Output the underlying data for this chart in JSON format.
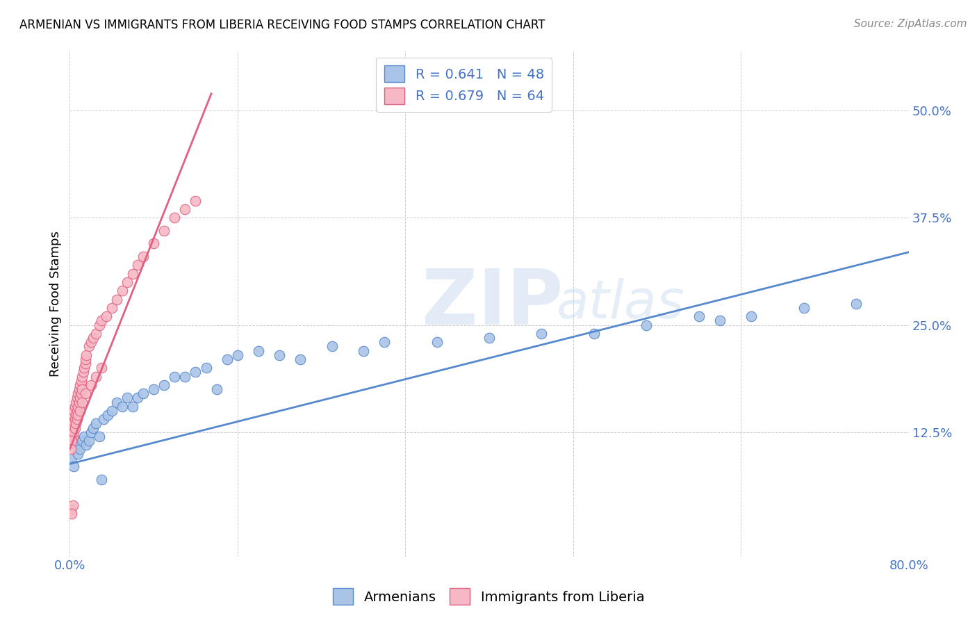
{
  "title": "ARMENIAN VS IMMIGRANTS FROM LIBERIA RECEIVING FOOD STAMPS CORRELATION CHART",
  "source": "Source: ZipAtlas.com",
  "ylabel": "Receiving Food Stamps",
  "background_color": "#ffffff",
  "legend": {
    "armenian_R": "0.641",
    "armenian_N": "48",
    "liberia_R": "0.679",
    "liberia_N": "64"
  },
  "armenian_color": "#aac4e8",
  "liberia_color": "#f5b8c4",
  "line_armenian": "#5588cc",
  "line_liberia": "#e06080",
  "scatter_armenian_x": [
    0.002,
    0.004,
    0.006,
    0.008,
    0.01,
    0.012,
    0.014,
    0.016,
    0.018,
    0.02,
    0.022,
    0.025,
    0.028,
    0.032,
    0.036,
    0.04,
    0.045,
    0.05,
    0.055,
    0.06,
    0.065,
    0.07,
    0.08,
    0.09,
    0.1,
    0.11,
    0.12,
    0.13,
    0.14,
    0.15,
    0.16,
    0.18,
    0.2,
    0.22,
    0.25,
    0.28,
    0.3,
    0.35,
    0.4,
    0.45,
    0.5,
    0.55,
    0.6,
    0.62,
    0.65,
    0.7,
    0.75,
    0.03
  ],
  "scatter_armenian_y": [
    0.095,
    0.085,
    0.11,
    0.1,
    0.105,
    0.115,
    0.12,
    0.11,
    0.115,
    0.125,
    0.13,
    0.135,
    0.12,
    0.14,
    0.145,
    0.15,
    0.16,
    0.155,
    0.165,
    0.155,
    0.165,
    0.17,
    0.175,
    0.18,
    0.19,
    0.19,
    0.195,
    0.2,
    0.175,
    0.21,
    0.215,
    0.22,
    0.215,
    0.21,
    0.225,
    0.22,
    0.23,
    0.23,
    0.235,
    0.24,
    0.24,
    0.25,
    0.26,
    0.255,
    0.26,
    0.27,
    0.275,
    0.07
  ],
  "scatter_liberia_x": [
    0.001,
    0.002,
    0.002,
    0.003,
    0.003,
    0.004,
    0.004,
    0.005,
    0.005,
    0.006,
    0.006,
    0.007,
    0.007,
    0.008,
    0.008,
    0.009,
    0.009,
    0.01,
    0.01,
    0.011,
    0.011,
    0.012,
    0.012,
    0.013,
    0.014,
    0.015,
    0.015,
    0.016,
    0.018,
    0.02,
    0.022,
    0.025,
    0.028,
    0.03,
    0.035,
    0.04,
    0.045,
    0.05,
    0.055,
    0.06,
    0.065,
    0.07,
    0.08,
    0.09,
    0.1,
    0.11,
    0.12,
    0.003,
    0.004,
    0.005,
    0.006,
    0.007,
    0.008,
    0.01,
    0.012,
    0.015,
    0.02,
    0.025,
    0.03,
    0.002,
    0.001,
    0.001,
    0.003,
    0.002
  ],
  "scatter_liberia_y": [
    0.13,
    0.14,
    0.12,
    0.135,
    0.145,
    0.15,
    0.13,
    0.155,
    0.14,
    0.16,
    0.145,
    0.165,
    0.15,
    0.17,
    0.155,
    0.175,
    0.16,
    0.18,
    0.165,
    0.185,
    0.17,
    0.19,
    0.175,
    0.195,
    0.2,
    0.205,
    0.21,
    0.215,
    0.225,
    0.23,
    0.235,
    0.24,
    0.25,
    0.255,
    0.26,
    0.27,
    0.28,
    0.29,
    0.3,
    0.31,
    0.32,
    0.33,
    0.345,
    0.36,
    0.375,
    0.385,
    0.395,
    0.12,
    0.125,
    0.13,
    0.135,
    0.14,
    0.145,
    0.15,
    0.16,
    0.17,
    0.18,
    0.19,
    0.2,
    0.115,
    0.105,
    0.035,
    0.04,
    0.03
  ],
  "line_armenian_x0": 0.0,
  "line_armenian_x1": 0.8,
  "line_armenian_y0": 0.088,
  "line_armenian_y1": 0.335,
  "line_liberia_x0": 0.0,
  "line_liberia_x1": 0.135,
  "line_liberia_y0": 0.105,
  "line_liberia_y1": 0.52,
  "xlim": [
    0.0,
    0.8
  ],
  "ylim": [
    -0.02,
    0.57
  ],
  "yticks": [
    0.125,
    0.25,
    0.375,
    0.5
  ],
  "ytick_labels": [
    "12.5%",
    "25.0%",
    "37.5%",
    "50.0%"
  ],
  "xticks": [
    0.0,
    0.16,
    0.32,
    0.48,
    0.64,
    0.8
  ],
  "xtick_labels": [
    "0.0%",
    "",
    "",
    "",
    "",
    "80.0%"
  ],
  "title_fontsize": 12,
  "tick_fontsize": 13,
  "label_fontsize": 13,
  "legend_fontsize": 14,
  "source_fontsize": 11
}
